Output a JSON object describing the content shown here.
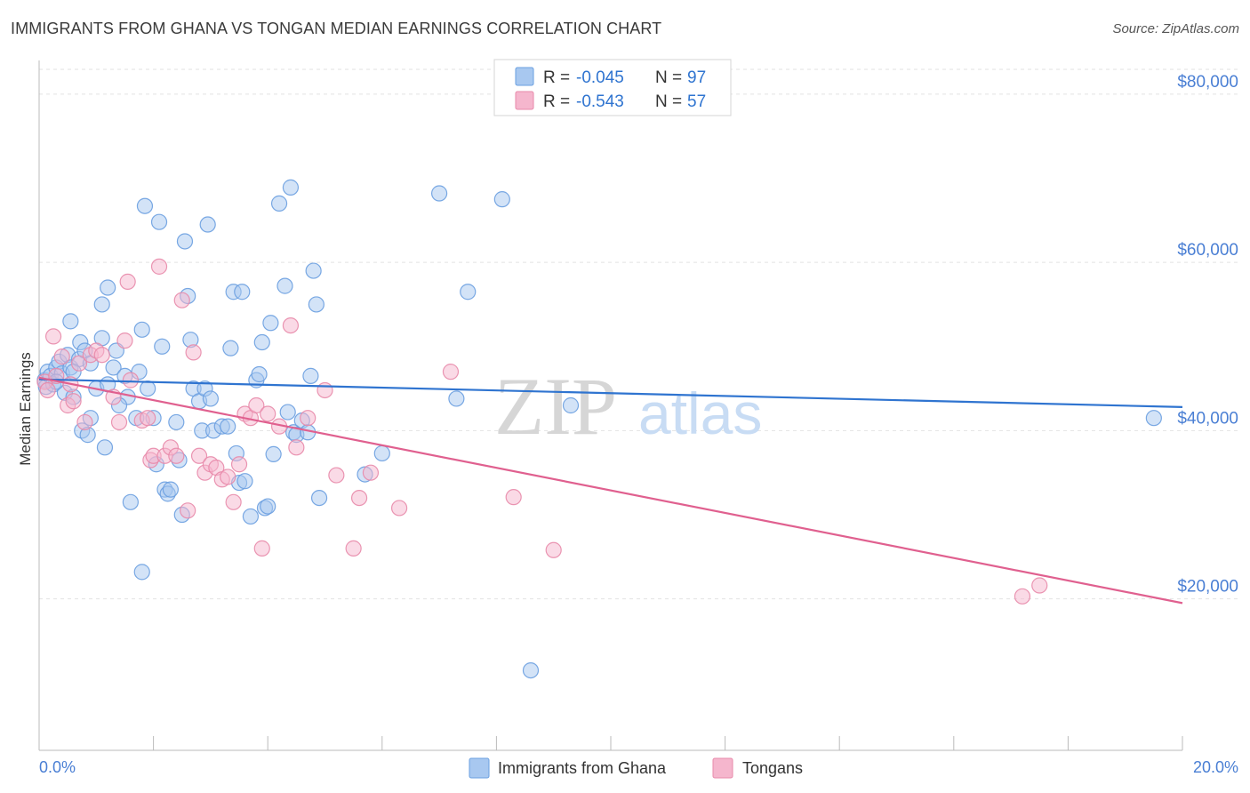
{
  "header": {
    "title": "IMMIGRANTS FROM GHANA VS TONGAN MEDIAN EARNINGS CORRELATION CHART",
    "source": "Source: ZipAtlas.com"
  },
  "watermark": {
    "zip": "ZIP",
    "atlas": "atlas"
  },
  "legend_top": [
    {
      "r_label": "R = ",
      "r_value": "-0.045",
      "n_label": "N = ",
      "n_value": "97"
    },
    {
      "r_label": "R = ",
      "r_value": "-0.543",
      "n_label": "N = ",
      "n_value": "57"
    }
  ],
  "legend_bottom": [
    {
      "label": "Immigrants from Ghana"
    },
    {
      "label": "Tongans"
    }
  ],
  "colors": {
    "ghana_fill": "#a8c8f0",
    "ghana_stroke": "#6a9fe0",
    "ghana_line": "#2f74d0",
    "tongan_fill": "#f5b6cd",
    "tongan_stroke": "#e88aaa",
    "tongan_line": "#e0608f",
    "axis_text": "#4a7fd4",
    "grid": "#e2e2e2"
  },
  "chart_data": {
    "type": "scatter",
    "title": "IMMIGRANTS FROM GHANA VS TONGAN MEDIAN EARNINGS CORRELATION CHART",
    "xlabel": "",
    "ylabel": "Median Earnings",
    "xlim": [
      0,
      20
    ],
    "ylim": [
      2000,
      84000
    ],
    "x_tick_labels": [
      "0.0%",
      "20.0%"
    ],
    "y_ticks": [
      20000,
      40000,
      60000,
      80000
    ],
    "y_tick_labels": [
      "$20,000",
      "$40,000",
      "$60,000",
      "$80,000"
    ],
    "grid": true,
    "legend_position": "top-center",
    "series": [
      {
        "name": "Immigrants from Ghana",
        "trend": {
          "x": [
            0,
            20
          ],
          "y": [
            46100,
            42800
          ]
        },
        "points": [
          [
            0.1,
            46000
          ],
          [
            0.12,
            45200
          ],
          [
            0.15,
            47000
          ],
          [
            0.2,
            46500
          ],
          [
            0.25,
            45500
          ],
          [
            0.3,
            47500
          ],
          [
            0.35,
            48200
          ],
          [
            0.4,
            46800
          ],
          [
            0.45,
            44500
          ],
          [
            0.5,
            49000
          ],
          [
            0.55,
            47500
          ],
          [
            0.6,
            44000
          ],
          [
            0.7,
            48500
          ],
          [
            0.72,
            50500
          ],
          [
            0.75,
            40000
          ],
          [
            0.8,
            49500
          ],
          [
            0.85,
            39500
          ],
          [
            0.9,
            41500
          ],
          [
            1.0,
            45000
          ],
          [
            1.1,
            51000
          ],
          [
            1.15,
            38000
          ],
          [
            1.2,
            45500
          ],
          [
            1.3,
            47500
          ],
          [
            1.35,
            49500
          ],
          [
            0.55,
            53000
          ],
          [
            1.1,
            55000
          ],
          [
            1.2,
            57000
          ],
          [
            1.5,
            46500
          ],
          [
            1.55,
            44000
          ],
          [
            1.6,
            31500
          ],
          [
            1.7,
            41500
          ],
          [
            1.75,
            47000
          ],
          [
            1.8,
            52000
          ],
          [
            1.85,
            66700
          ],
          [
            1.9,
            45000
          ],
          [
            2.0,
            41500
          ],
          [
            2.05,
            36000
          ],
          [
            2.1,
            64800
          ],
          [
            2.15,
            50000
          ],
          [
            2.2,
            33000
          ],
          [
            2.25,
            32500
          ],
          [
            2.3,
            33000
          ],
          [
            2.4,
            41000
          ],
          [
            2.45,
            36500
          ],
          [
            2.5,
            30000
          ],
          [
            2.55,
            62500
          ],
          [
            2.6,
            56000
          ],
          [
            2.65,
            50800
          ],
          [
            2.7,
            45000
          ],
          [
            2.8,
            43500
          ],
          [
            2.85,
            40000
          ],
          [
            2.9,
            45000
          ],
          [
            2.95,
            64500
          ],
          [
            3.0,
            43800
          ],
          [
            3.05,
            40000
          ],
          [
            3.2,
            40500
          ],
          [
            3.3,
            40500
          ],
          [
            3.35,
            49800
          ],
          [
            3.4,
            56500
          ],
          [
            3.45,
            37300
          ],
          [
            3.5,
            33800
          ],
          [
            3.55,
            56500
          ],
          [
            3.6,
            34000
          ],
          [
            3.7,
            29800
          ],
          [
            3.8,
            46000
          ],
          [
            3.85,
            46700
          ],
          [
            3.9,
            50500
          ],
          [
            3.95,
            30800
          ],
          [
            4.0,
            31000
          ],
          [
            4.05,
            52800
          ],
          [
            4.1,
            37200
          ],
          [
            4.2,
            67000
          ],
          [
            4.3,
            57200
          ],
          [
            4.35,
            42200
          ],
          [
            4.4,
            68900
          ],
          [
            4.45,
            39800
          ],
          [
            4.5,
            39500
          ],
          [
            4.6,
            41200
          ],
          [
            4.7,
            39800
          ],
          [
            4.75,
            46500
          ],
          [
            4.8,
            59000
          ],
          [
            4.85,
            55000
          ],
          [
            4.9,
            32000
          ],
          [
            5.7,
            34800
          ],
          [
            6.0,
            37300
          ],
          [
            7.3,
            43800
          ],
          [
            7.0,
            68200
          ],
          [
            7.5,
            56500
          ],
          [
            8.1,
            67500
          ],
          [
            8.6,
            11500
          ],
          [
            9.3,
            43000
          ],
          [
            19.5,
            41500
          ],
          [
            1.8,
            23200
          ],
          [
            1.4,
            43000
          ],
          [
            0.9,
            48000
          ],
          [
            0.3,
            45800
          ],
          [
            0.6,
            47000
          ]
        ]
      },
      {
        "name": "Tongans",
        "trend": {
          "x": [
            0,
            20
          ],
          "y": [
            46300,
            19500
          ]
        },
        "points": [
          [
            0.1,
            45800
          ],
          [
            0.15,
            44800
          ],
          [
            0.25,
            51200
          ],
          [
            0.3,
            46500
          ],
          [
            0.4,
            48800
          ],
          [
            0.5,
            43000
          ],
          [
            0.55,
            45500
          ],
          [
            0.6,
            43500
          ],
          [
            0.7,
            48000
          ],
          [
            0.8,
            41000
          ],
          [
            0.9,
            49000
          ],
          [
            1.0,
            49500
          ],
          [
            1.1,
            49000
          ],
          [
            1.3,
            44000
          ],
          [
            1.4,
            41000
          ],
          [
            1.5,
            50700
          ],
          [
            1.55,
            57700
          ],
          [
            1.6,
            46000
          ],
          [
            1.8,
            41200
          ],
          [
            1.9,
            41500
          ],
          [
            1.95,
            36500
          ],
          [
            2.0,
            37000
          ],
          [
            2.1,
            59500
          ],
          [
            2.2,
            37000
          ],
          [
            2.3,
            38000
          ],
          [
            2.4,
            37000
          ],
          [
            2.5,
            55500
          ],
          [
            2.6,
            30500
          ],
          [
            2.7,
            49300
          ],
          [
            2.8,
            37000
          ],
          [
            2.9,
            35000
          ],
          [
            3.0,
            36000
          ],
          [
            3.1,
            35600
          ],
          [
            3.2,
            34200
          ],
          [
            3.3,
            34500
          ],
          [
            3.4,
            31500
          ],
          [
            3.5,
            36000
          ],
          [
            3.6,
            42000
          ],
          [
            3.7,
            41500
          ],
          [
            3.8,
            43000
          ],
          [
            3.9,
            26000
          ],
          [
            4.0,
            42000
          ],
          [
            4.2,
            40500
          ],
          [
            4.4,
            52500
          ],
          [
            4.5,
            38000
          ],
          [
            4.7,
            41500
          ],
          [
            5.0,
            44800
          ],
          [
            5.2,
            34700
          ],
          [
            5.5,
            26000
          ],
          [
            5.6,
            32000
          ],
          [
            5.8,
            35000
          ],
          [
            6.3,
            30800
          ],
          [
            7.2,
            47000
          ],
          [
            8.3,
            32100
          ],
          [
            9.0,
            25800
          ],
          [
            17.2,
            20300
          ],
          [
            17.5,
            21600
          ]
        ]
      }
    ]
  }
}
